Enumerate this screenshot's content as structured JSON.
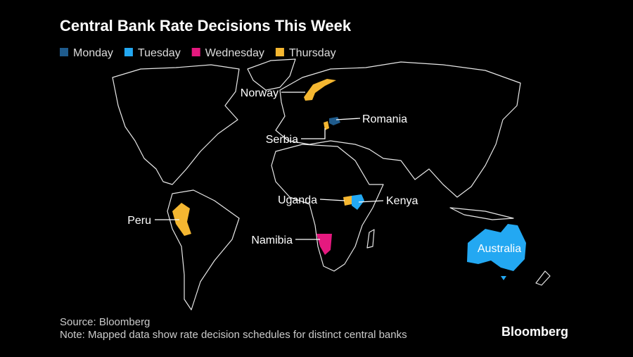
{
  "title": "Central Bank Rate Decisions This Week",
  "legend": [
    {
      "name": "Monday",
      "color": "#1f5b8c"
    },
    {
      "name": "Tuesday",
      "color": "#23a8f2"
    },
    {
      "name": "Wednesday",
      "color": "#e5197f"
    },
    {
      "name": "Thursday",
      "color": "#f5b731"
    }
  ],
  "countries": [
    {
      "label": "Norway",
      "color": "#f5b731"
    },
    {
      "label": "Romania",
      "color": "#1f5b8c"
    },
    {
      "label": "Serbia",
      "color": "#f5b731"
    },
    {
      "label": "Uganda",
      "color": "#f5b731"
    },
    {
      "label": "Kenya",
      "color": "#23a8f2"
    },
    {
      "label": "Peru",
      "color": "#f5b731"
    },
    {
      "label": "Namibia",
      "color": "#e5197f"
    },
    {
      "label": "Australia",
      "color": "#23a8f2"
    }
  ],
  "source": "Source: Bloomberg",
  "note": "Note: Mapped data show rate decision schedules for distinct central banks",
  "logo": "Bloomberg"
}
